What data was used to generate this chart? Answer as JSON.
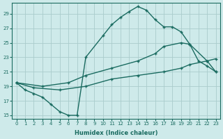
{
  "xlabel": "Humidex (Indice chaleur)",
  "bg_color": "#ceeaea",
  "grid_color": "#aacccc",
  "line_color": "#1a6b60",
  "xlim": [
    -0.5,
    23.5
  ],
  "ylim": [
    14.5,
    30.5
  ],
  "xticks": [
    0,
    1,
    2,
    3,
    4,
    5,
    6,
    7,
    8,
    9,
    10,
    11,
    12,
    13,
    14,
    15,
    16,
    17,
    18,
    19,
    20,
    21,
    22,
    23
  ],
  "yticks": [
    15,
    17,
    19,
    21,
    23,
    25,
    27,
    29
  ],
  "line1_x": [
    0,
    1,
    2,
    3,
    4,
    5,
    6,
    7,
    8,
    10,
    11,
    12,
    13,
    14,
    15,
    16,
    17,
    18,
    19,
    20,
    21,
    22,
    23
  ],
  "line1_y": [
    19.5,
    18.5,
    18.0,
    17.5,
    16.5,
    15.5,
    15.0,
    15.0,
    23.0,
    26.0,
    27.5,
    28.5,
    29.3,
    30.0,
    29.5,
    28.2,
    27.2,
    27.2,
    26.5,
    24.8,
    22.5,
    21.8,
    21.0
  ],
  "line2_x": [
    0,
    2,
    5,
    8,
    11,
    14,
    17,
    19,
    20,
    22,
    23
  ],
  "line2_y": [
    19.5,
    18.8,
    18.5,
    19.0,
    20.0,
    20.5,
    21.0,
    21.5,
    22.0,
    22.5,
    21.0
  ],
  "line3_x": [
    0,
    3,
    6,
    8,
    11,
    14,
    16,
    17,
    19,
    20,
    22,
    23
  ],
  "line3_y": [
    19.5,
    19.0,
    19.5,
    20.5,
    21.5,
    22.5,
    23.5,
    24.5,
    25.0,
    24.8,
    22.5,
    22.8
  ]
}
